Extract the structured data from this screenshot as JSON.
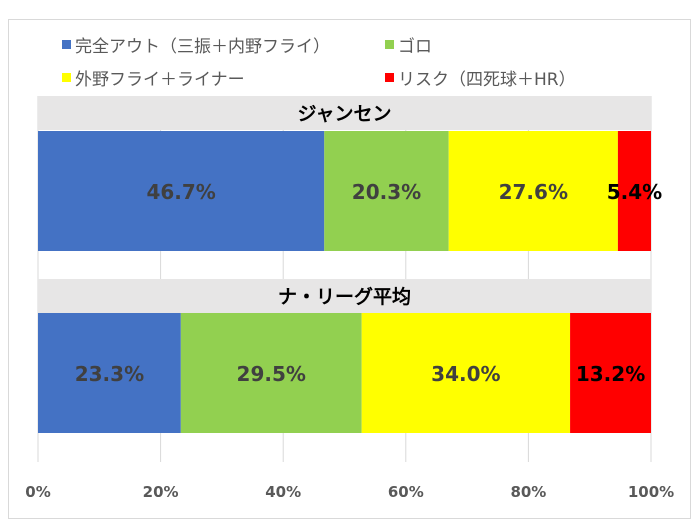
{
  "chart_data": {
    "type": "bar",
    "stacked": "percent",
    "orientation": "horizontal",
    "panels": [
      "ジャンセン",
      "ナ・リーグ平均"
    ],
    "series": [
      {
        "name": "完全アウト（三振＋内野フライ）",
        "color": "#4472c4",
        "values": [
          46.7,
          23.3
        ]
      },
      {
        "name": "ゴロ",
        "color": "#92d050",
        "values": [
          20.3,
          29.5
        ]
      },
      {
        "name": "外野フライ＋ライナー",
        "color": "#ffff00",
        "values": [
          27.6,
          34.0
        ]
      },
      {
        "name": "リスク（四死球＋HR）",
        "color": "#ff0000",
        "values": [
          5.4,
          13.2
        ]
      }
    ],
    "data_labels": [
      [
        "46.7%",
        "20.3%",
        "27.6%",
        "5.4%"
      ],
      [
        "23.3%",
        "29.5%",
        "34.0%",
        "13.2%"
      ]
    ],
    "x_ticks": [
      "0%",
      "20%",
      "40%",
      "60%",
      "80%",
      "100%"
    ],
    "xlim": [
      0,
      100
    ],
    "grid": true,
    "legend_position": "top"
  }
}
